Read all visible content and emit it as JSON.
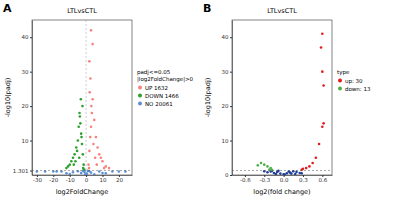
{
  "chart_data": [
    {
      "type": "scatter",
      "panel": "A",
      "title": "LTLvsCTL",
      "x_label": "log2FoldChange",
      "y_label": "-log10(padj)",
      "xlim": [
        -33,
        28
      ],
      "xticks": [
        -30,
        -20,
        -10,
        0,
        10,
        20
      ],
      "ylim": [
        0,
        45
      ],
      "yticks": [
        1.301,
        10,
        20,
        30,
        40
      ],
      "grid": false,
      "legend": "right",
      "legend_title": [
        "padj<=0.05",
        "|log2FoldChange|>0"
      ],
      "hline": 1.301,
      "vline": 0,
      "series": [
        {
          "name": "UP 1632",
          "color": "#f4837d",
          "x": [
            1.5,
            2,
            2.5,
            3,
            3.5,
            4,
            5,
            6,
            7,
            8,
            9,
            10,
            12,
            2.2,
            3.2,
            1.8,
            4.5,
            5.5,
            2.6,
            3,
            4,
            2,
            6.5,
            11,
            14
          ],
          "values": [
            3,
            7,
            11,
            14,
            18,
            22,
            16,
            11,
            8,
            6,
            5,
            4,
            2.5,
            24,
            20,
            2,
            9,
            5,
            28,
            42,
            38,
            33,
            3,
            2,
            2
          ]
        },
        {
          "name": "DOWN 1466",
          "color": "#2ca02c",
          "x": [
            -1.5,
            -2,
            -2.5,
            -3,
            -3.5,
            -4,
            -4.5,
            -5,
            -6,
            -7,
            -8,
            -9,
            -10,
            -11,
            -2.2,
            -3.2,
            -1.8,
            -5.5,
            -6.5,
            -1.2,
            -2.8,
            -4.2,
            -3.8,
            -7.5,
            -12
          ],
          "values": [
            3,
            6,
            9,
            12,
            15,
            18,
            14,
            10,
            8,
            6,
            5,
            4,
            3,
            2.5,
            20,
            22,
            2,
            7,
            4,
            1.6,
            11,
            5,
            17,
            3,
            2
          ]
        },
        {
          "name": "NO 20061",
          "color": "#5b8fd6",
          "x": [
            -30,
            -25,
            -20,
            -15,
            -12,
            -8,
            -5,
            -3,
            -1,
            -0.5,
            0,
            0.5,
            1,
            3,
            5,
            8,
            12,
            16,
            20,
            24,
            -18,
            -10,
            -2,
            2,
            10
          ],
          "values": [
            1,
            1,
            1,
            1,
            0.5,
            0.8,
            1.1,
            0.6,
            0.9,
            0.3,
            0.1,
            0.4,
            1.2,
            0.7,
            0.2,
            1,
            0.5,
            1,
            1,
            1,
            1,
            0.3,
            1.25,
            1.1,
            0.6
          ]
        }
      ]
    },
    {
      "type": "scatter",
      "panel": "B",
      "title": "LTLvsCTL",
      "x_label": "log2(fold change)",
      "y_label": "-log10(padj)",
      "xlim": [
        -0.8,
        0.75
      ],
      "xticks": [
        -0.6,
        -0.3,
        {
          "value": 0,
          "label": "0.0"
        },
        0.3,
        0.6
      ],
      "ylim": [
        0,
        45
      ],
      "yticks": [
        0,
        10,
        20,
        30,
        40
      ],
      "grid": false,
      "legend": "right",
      "legend_title": [
        "type"
      ],
      "hline": 1.3,
      "series": [
        {
          "name": "up: 30",
          "color": "#e41a1c",
          "x": [
            0.6,
            0.58,
            0.6,
            0.62,
            0.6,
            0.55,
            0.5,
            0.45,
            0.4,
            0.35,
            0.3,
            0.28,
            0.62
          ],
          "values": [
            41,
            37,
            30,
            15,
            14,
            9,
            5,
            3.5,
            2.5,
            2,
            1.8,
            1.5,
            26
          ]
        },
        {
          "name": "down: 13",
          "color": "#4daf4a",
          "x": [
            -0.35,
            -0.3,
            -0.25,
            -0.2,
            -0.22,
            -0.4,
            -0.18
          ],
          "values": [
            3.5,
            3,
            2.5,
            2,
            1.6,
            2.8,
            1.5
          ]
        },
        {
          "name": "",
          "color": "#1f3f99",
          "x": [
            -0.25,
            -0.2,
            -0.15,
            -0.1,
            -0.05,
            0,
            0.05,
            0.1,
            0.15,
            0.2,
            0.25,
            -0.12,
            -0.08,
            0.02,
            0.08,
            0.12,
            -0.18,
            0.18,
            -0.3,
            0.28
          ],
          "values": [
            0.8,
            1,
            0.6,
            0.9,
            0.4,
            0.2,
            0.5,
            0.7,
            1.1,
            0.9,
            0.6,
            0.3,
            1.2,
            0.1,
            1.0,
            0.4,
            1.2,
            0.3,
            1.1,
            0.5
          ]
        }
      ]
    }
  ]
}
